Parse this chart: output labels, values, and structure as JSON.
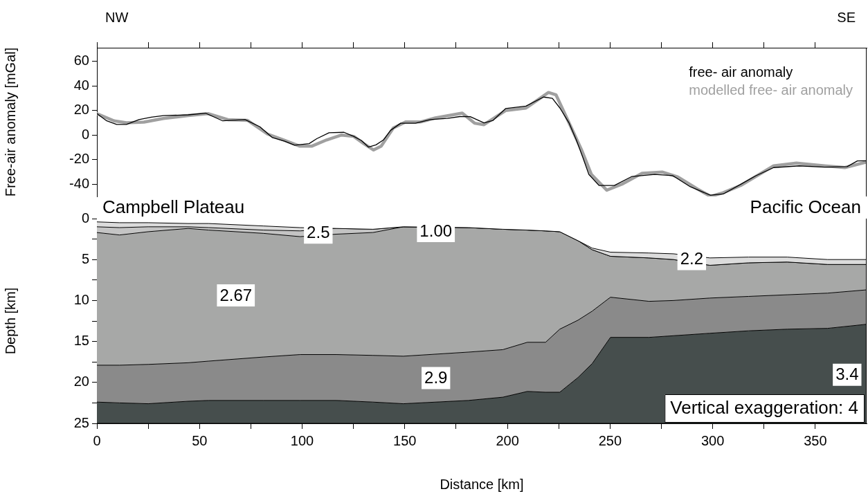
{
  "chart_data": [
    {
      "type": "line",
      "ylabel": "Free-air anomaly [mGal]",
      "annotations": [
        "NW",
        "SE"
      ],
      "legend": "top right",
      "tick_labels": "y",
      "xlim": [
        0,
        375
      ],
      "xticks": [
        {
          "value": 0,
          "label": null
        },
        {
          "value": 25,
          "label": null
        },
        {
          "value": 50,
          "label": null
        },
        {
          "value": 75,
          "label": null
        },
        {
          "value": 100,
          "label": null
        },
        {
          "value": 125,
          "label": null
        },
        {
          "value": 150,
          "label": null
        },
        {
          "value": 175,
          "label": null
        },
        {
          "value": 200,
          "label": null
        },
        {
          "value": 225,
          "label": null
        },
        {
          "value": 250,
          "label": null
        },
        {
          "value": 275,
          "label": null
        },
        {
          "value": 300,
          "label": null
        },
        {
          "value": 325,
          "label": null
        },
        {
          "value": 350,
          "label": null
        }
      ],
      "ylim": [
        -50,
        71
      ],
      "yticks": [
        -40,
        -20,
        0,
        20,
        40,
        60
      ],
      "series": [
        {
          "name": "free- air anomaly",
          "color": "#000000",
          "x": [
            0,
            4.8,
            9.6,
            14.4,
            20.5,
            26.5,
            32.4,
            44.5,
            52.9,
            61.3,
            72.2,
            79.4,
            85.5,
            91.5,
            96.3,
            103.4,
            107.1,
            113.1,
            120.4,
            125.1,
            128.8,
            132.3,
            136,
            139.6,
            143.1,
            148,
            155.2,
            162.4,
            170.8,
            176.8,
            181.9,
            188.6,
            193,
            199.1,
            209,
            217.6,
            221.9,
            225.6,
            230,
            233.6,
            236.7,
            239.7,
            244.7,
            252.1,
            260.7,
            271.8,
            280.6,
            289.1,
            298.9,
            305.1,
            313.7,
            321.1,
            329.7,
            342.1,
            354.5,
            365.5,
            370.5,
            375
          ],
          "values": [
            17.4,
            11.5,
            8.6,
            8.6,
            12.5,
            14.5,
            15.8,
            16.4,
            17.8,
            11.5,
            12.5,
            6.7,
            -2.1,
            -5,
            -8.3,
            -7,
            -3,
            1.8,
            2.2,
            -1.1,
            -4.4,
            -9.8,
            -8,
            -4,
            3.8,
            9.6,
            9.6,
            12.5,
            13.5,
            15,
            14.9,
            9.9,
            11.9,
            21.5,
            23.5,
            30.9,
            29.9,
            21.9,
            9.9,
            -4.1,
            -18.1,
            -32.1,
            -41.1,
            -41.1,
            -33.7,
            -32.1,
            -33.1,
            -42.1,
            -49,
            -48,
            -40.1,
            -33.1,
            -26.5,
            -25.1,
            -26.1,
            -25.7,
            -21.1,
            -21
          ]
        },
        {
          "name": "modelled free- air anomaly",
          "color": "#a0a0a0",
          "x": [
            0,
            8.4,
            14.4,
            22.9,
            32.4,
            44.5,
            54.1,
            63.8,
            73.4,
            83.1,
            90.3,
            98.7,
            104.8,
            111.9,
            119.2,
            125.1,
            130,
            134.8,
            138.5,
            144.4,
            150.4,
            157.6,
            164.9,
            178,
            184,
            188.6,
            199.1,
            209,
            220,
            223.7,
            231.1,
            236,
            240.9,
            248.4,
            255.8,
            265.6,
            275.4,
            282.9,
            292.7,
            298.9,
            305.1,
            313.7,
            329.7,
            340.8,
            354.5,
            364.4,
            375
          ],
          "values": [
            17.4,
            11.5,
            10,
            10.5,
            13.5,
            15.8,
            17.4,
            12.5,
            11.9,
            0.8,
            -3.7,
            -9,
            -9,
            -4,
            0,
            -1.1,
            -7,
            -12.2,
            -9,
            5.7,
            10.6,
            10.6,
            13.9,
            17.8,
            9.6,
            8.4,
            19.9,
            21.9,
            34.6,
            32.6,
            6,
            -11.7,
            -32.1,
            -44.9,
            -40,
            -31.1,
            -30.1,
            -34,
            -44,
            -49.9,
            -47,
            -41,
            -25.1,
            -22.8,
            -25.1,
            -26.5,
            -22
          ]
        }
      ]
    },
    {
      "type": "area",
      "stacked": true,
      "xlabel": "Distance [km]",
      "ylabel": "Depth [km]",
      "annotations": [
        "Campbell Plateau",
        "Pacific Ocean",
        "Vertical exaggeration: 4"
      ],
      "xlim": [
        0,
        375
      ],
      "xticks": [
        0,
        {
          "value": 25,
          "label": null
        },
        50,
        {
          "value": 75,
          "label": null
        },
        100,
        {
          "value": 125,
          "label": null
        },
        150,
        {
          "value": 175,
          "label": null
        },
        200,
        {
          "value": 225,
          "label": null
        },
        250,
        {
          "value": 275,
          "label": null
        },
        300,
        {
          "value": 325,
          "label": null
        },
        350
      ],
      "ylim": [
        25,
        0
      ],
      "yticks": [
        0,
        {
          "value": 2.5,
          "label": null
        },
        5,
        {
          "value": 7.5,
          "label": null
        },
        10,
        {
          "value": 12.5,
          "label": null
        },
        15,
        {
          "value": 17.5,
          "label": null
        },
        20,
        {
          "value": 22.5,
          "label": null
        },
        25
      ],
      "x": [
        0,
        11,
        25,
        44.5,
        54.4,
        81,
        99,
        116.7,
        134.5,
        149.3,
        181,
        197.8,
        209.7,
        218.6,
        225.5,
        234.4,
        241.3,
        250.2,
        269,
        280.9,
        298.7,
        317.5,
        336.3,
        356,
        375
      ],
      "series": [
        {
          "name": "1.00",
          "color": "#ffffff",
          "values": [
            0.4,
            0.5,
            0.5,
            0.6,
            0.6,
            0.9,
            1.1,
            1.2,
            1.3,
            1.0,
            1.1,
            1.3,
            1.4,
            1.5,
            1.6,
            2.7,
            3.6,
            4.1,
            4.2,
            4.3,
            4.8,
            4.7,
            4.7,
            5.0,
            5.0
          ]
        },
        {
          "name": "2.2",
          "color": "#dcdcdc",
          "values": [
            0.6,
            0.6,
            0.5,
            0.4,
            0.5,
            0.5,
            0.4,
            0,
            0,
            0,
            0,
            0,
            0,
            0,
            0,
            0,
            0.2,
            0.5,
            0.6,
            0.7,
            0.9,
            0.7,
            0.6,
            0.6,
            0.6
          ]
        },
        {
          "name": "2.5",
          "color": "#c4c4c4",
          "values": [
            0.7,
            0.9,
            0.6,
            0.2,
            0.3,
            0.4,
            0.7,
            0.7,
            0.4,
            0,
            0,
            0,
            0,
            0,
            0,
            0,
            0,
            0,
            0,
            0,
            0,
            0,
            0,
            0,
            0
          ]
        },
        {
          "name": "2.67",
          "color": "#a7a8a7",
          "values": [
            16.2,
            15.9,
            16.2,
            16.4,
            16.0,
            15.1,
            14.4,
            14.7,
            15.0,
            15.8,
            15.2,
            14.7,
            13.7,
            13.6,
            11.9,
            9.7,
            7.5,
            5.0,
            5.3,
            5.0,
            4.0,
            4.1,
            4.0,
            3.5,
            3.1
          ]
        },
        {
          "name": "2.9",
          "color": "#8a8a8a",
          "values": [
            4.5,
            4.6,
            4.8,
            4.7,
            4.8,
            5.3,
            5.6,
            5.6,
            5.7,
            5.8,
            5.9,
            5.8,
            6.0,
            6.1,
            7.7,
            7.0,
            6.4,
            4.9,
            4.4,
            4.3,
            4.3,
            4.2,
            4.2,
            4.3,
            4.2
          ]
        },
        {
          "name": "3.4",
          "color": "#464e4d",
          "values": [
            2.6,
            2.5,
            2.4,
            2.7,
            2.8,
            2.8,
            2.8,
            2.8,
            2.6,
            2.4,
            2.8,
            3.2,
            3.9,
            3.8,
            3.8,
            5.6,
            7.3,
            10.5,
            10.5,
            10.7,
            11.0,
            11.3,
            11.5,
            11.6,
            12.1
          ]
        }
      ]
    }
  ]
}
